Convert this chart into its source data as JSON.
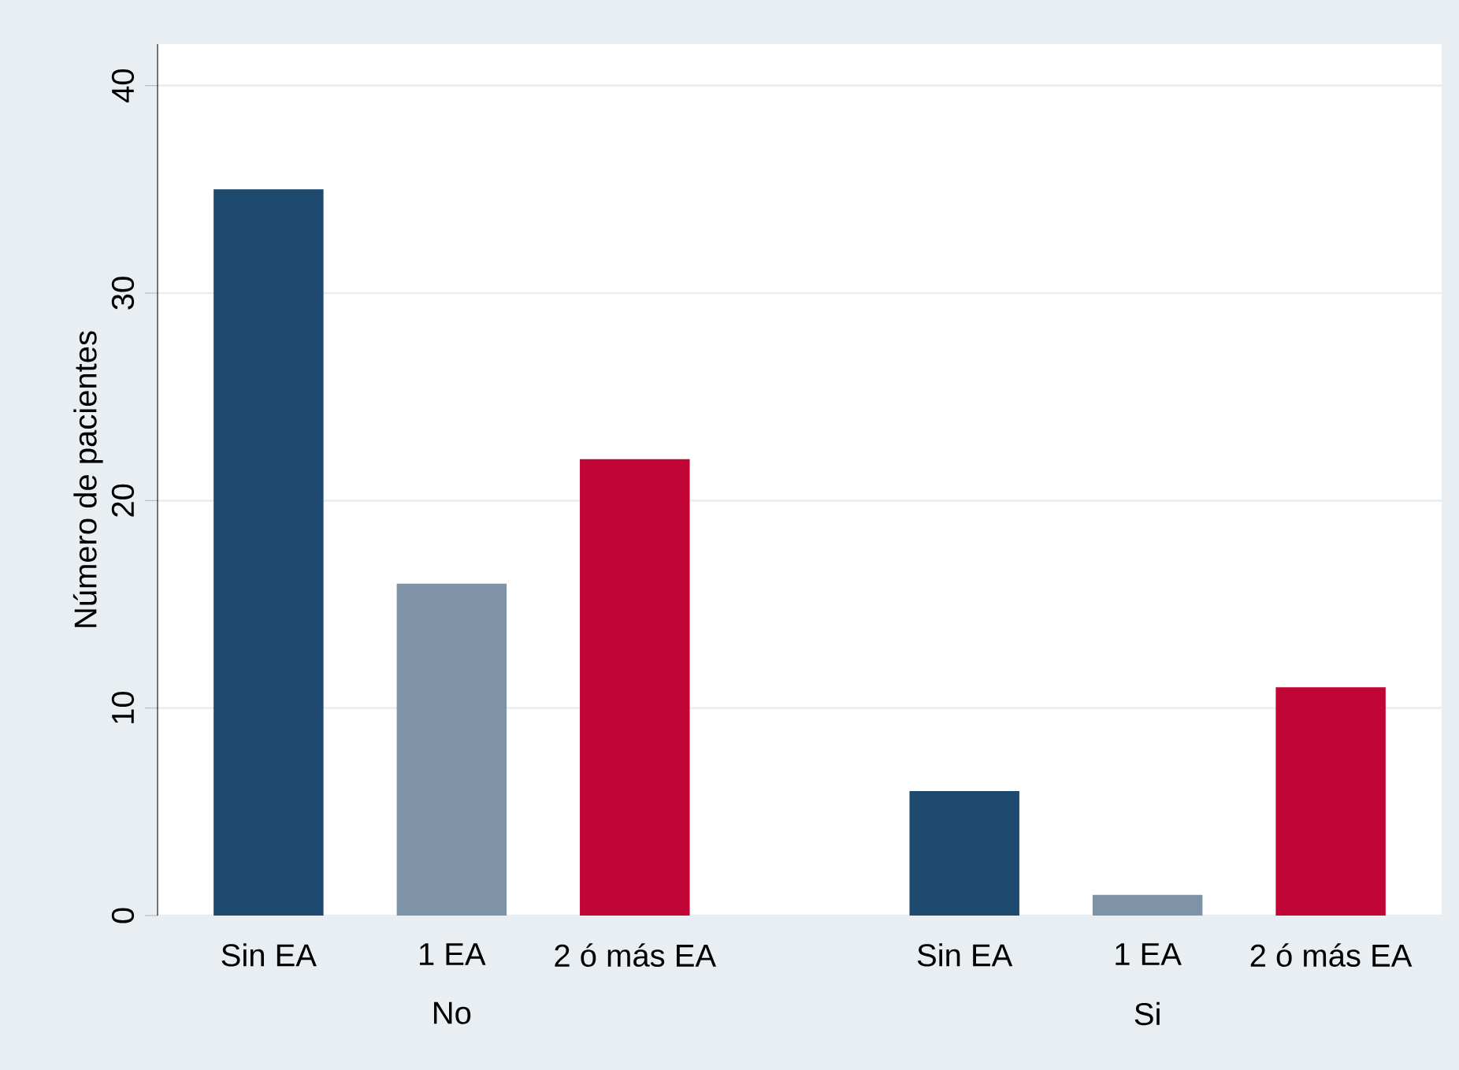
{
  "chart_data": {
    "type": "bar",
    "categories": [
      "No",
      "Si"
    ],
    "series": [
      {
        "name": "Sin EA",
        "color": "#1f4a70",
        "values": [
          35,
          6
        ]
      },
      {
        "name": "1 EA",
        "color": "#7f93a8",
        "values": [
          16,
          1
        ]
      },
      {
        "name": "2 ó más EA",
        "color": "#c10534",
        "values": [
          22,
          11
        ]
      }
    ],
    "ylabel": "Número de pacientes",
    "ylim": [
      0,
      42
    ],
    "yticks": [
      0,
      10,
      20,
      30,
      40
    ],
    "grid": "y",
    "legend": false
  }
}
